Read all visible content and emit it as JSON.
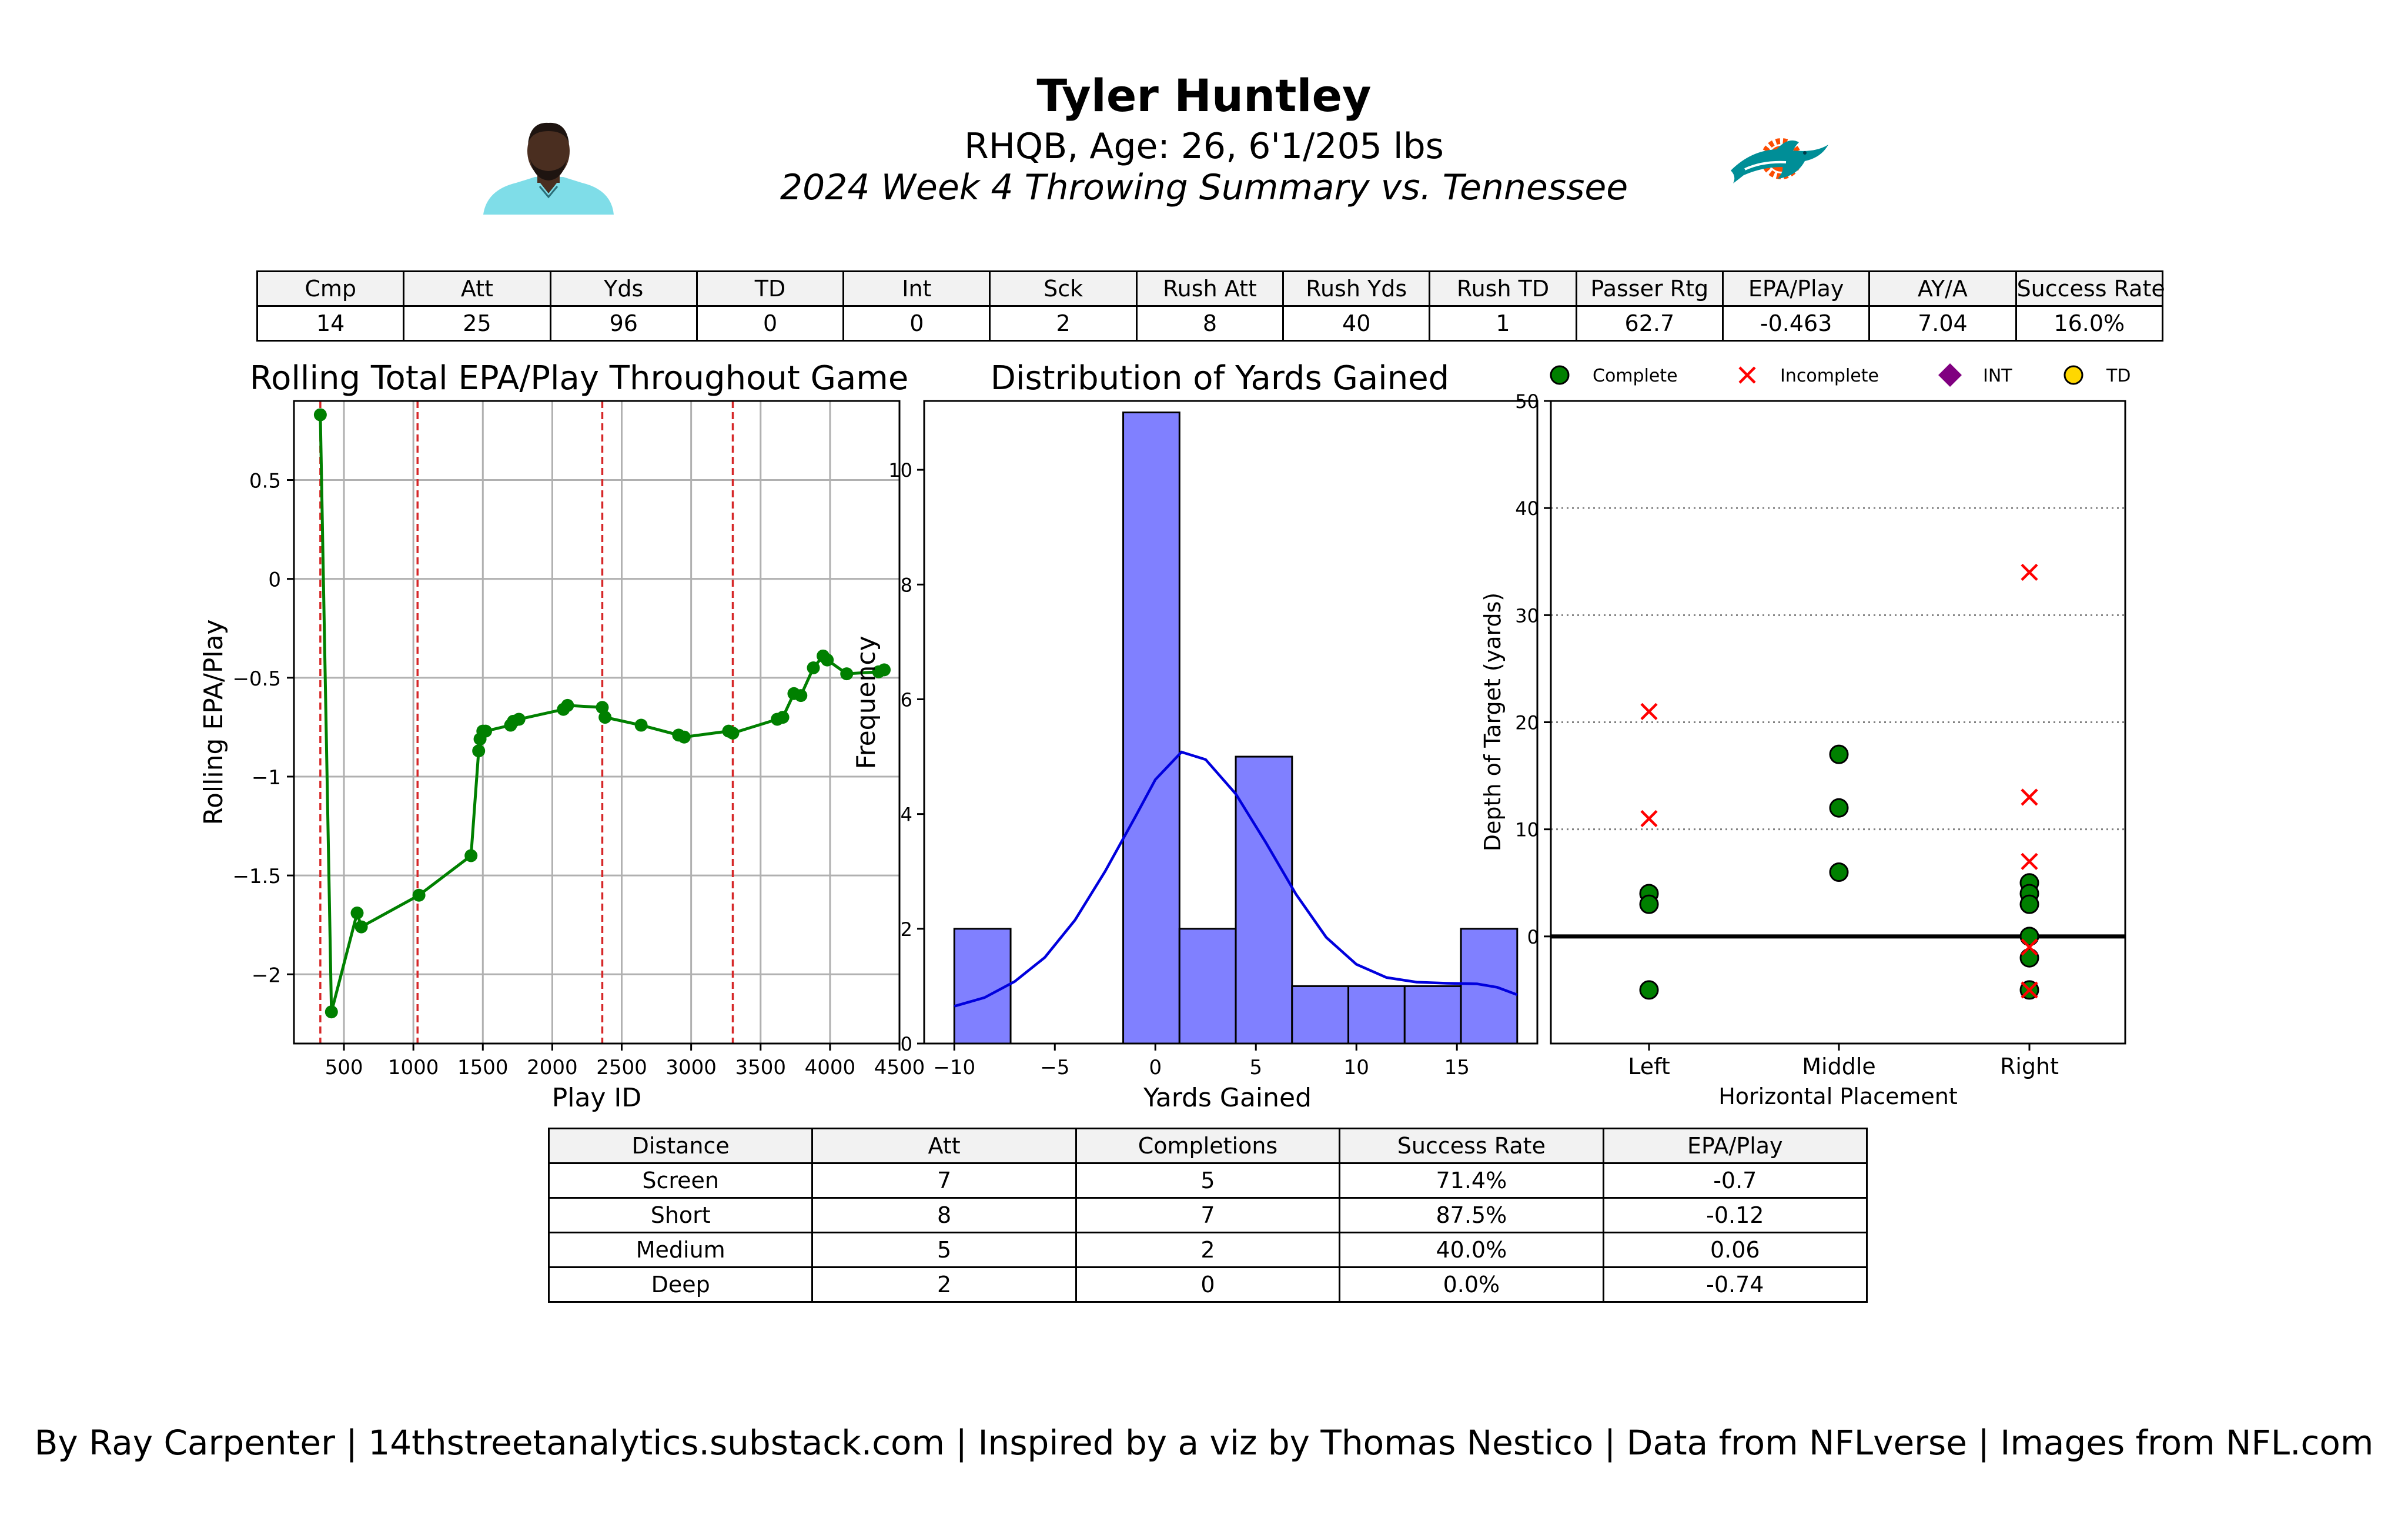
{
  "header": {
    "title": "Tyler Huntley",
    "subtitle": "RHQB, Age: 26, 6'1/205 lbs",
    "game": "2024 Week 4 Throwing Summary vs. Tennessee"
  },
  "images": {
    "headshot": "player-headshot",
    "logo": "miami-dolphins-logo",
    "colors": {
      "aqua": "#008E97",
      "orange": "#FC4C02",
      "skin": "#5a3a28"
    }
  },
  "stats_table": {
    "headers": [
      "Cmp",
      "Att",
      "Yds",
      "TD",
      "Int",
      "Sck",
      "Rush Att",
      "Rush Yds",
      "Rush TD",
      "Passer Rtg",
      "EPA/Play",
      "AY/A",
      "Success Rate"
    ],
    "values": [
      "14",
      "25",
      "96",
      "0",
      "0",
      "2",
      "8",
      "40",
      "1",
      "62.7",
      "-0.463",
      "7.04",
      "16.0%"
    ]
  },
  "chart_data": [
    {
      "type": "line",
      "title": "Rolling Total EPA/Play Throughout Game",
      "xlabel": "Play ID",
      "ylabel": "Rolling EPA/Play",
      "xlim": [
        140,
        4500
      ],
      "ylim": [
        -2.35,
        0.9
      ],
      "xticks": [
        500,
        1000,
        1500,
        2000,
        2500,
        3000,
        3500,
        4000,
        4500
      ],
      "yticks": [
        -2.0,
        -1.5,
        -1.0,
        -0.5,
        0.0,
        0.5
      ],
      "grid": true,
      "line_color": "#008000",
      "quarter_lines": [
        330,
        1030,
        2360,
        3300
      ],
      "quarter_line_color": "#d62728",
      "x": [
        330,
        410,
        595,
        625,
        1040,
        1415,
        1470,
        1480,
        1500,
        1520,
        1700,
        1720,
        1760,
        2080,
        2110,
        2360,
        2380,
        2640,
        2910,
        2950,
        3270,
        3300,
        3620,
        3660,
        3740,
        3790,
        3880,
        3950,
        3980,
        4120,
        4350,
        4390
      ],
      "y": [
        0.83,
        -2.19,
        -1.69,
        -1.76,
        -1.6,
        -1.4,
        -0.87,
        -0.81,
        -0.77,
        -0.77,
        -0.74,
        -0.72,
        -0.71,
        -0.66,
        -0.64,
        -0.65,
        -0.7,
        -0.74,
        -0.79,
        -0.8,
        -0.77,
        -0.78,
        -0.71,
        -0.7,
        -0.58,
        -0.59,
        -0.45,
        -0.39,
        -0.41,
        -0.48,
        -0.47,
        -0.46
      ]
    },
    {
      "type": "bar",
      "title": "Distribution of Yards Gained",
      "xlabel": "Yards Gained",
      "ylabel": "Frequency",
      "xlim": [
        -11.5,
        19
      ],
      "ylim": [
        0,
        11.2
      ],
      "xticks": [
        -10,
        -5,
        0,
        5,
        10,
        15
      ],
      "yticks": [
        0,
        2,
        4,
        6,
        8,
        10
      ],
      "bar_color": "#8080ff",
      "kde_color": "#0000dd",
      "bin_edges": [
        -10,
        -7.2,
        -4.4,
        -1.6,
        1.2,
        4.0,
        6.8,
        9.6,
        12.4,
        15.2,
        18
      ],
      "values": [
        2,
        0,
        0,
        11,
        2,
        5,
        1,
        1,
        1,
        2
      ],
      "kde_x": [
        -10,
        -8.5,
        -7,
        -5.5,
        -4,
        -2.5,
        -1,
        0,
        1.3,
        2.5,
        4,
        5.5,
        7,
        8.5,
        10,
        11.5,
        13,
        14.5,
        16,
        17,
        18
      ],
      "kde_y": [
        0.65,
        0.8,
        1.08,
        1.5,
        2.15,
        3.0,
        3.95,
        4.6,
        5.08,
        4.95,
        4.35,
        3.5,
        2.6,
        1.85,
        1.38,
        1.15,
        1.07,
        1.05,
        1.04,
        0.98,
        0.85
      ]
    },
    {
      "type": "scatter",
      "xlabel": "Horizontal Placement",
      "ylabel": "Depth of Target (yards)",
      "categories": [
        "Left",
        "Middle",
        "Right"
      ],
      "ylim": [
        -10,
        50
      ],
      "yticks": [
        0,
        10,
        20,
        30,
        40,
        50
      ],
      "grid": "dotted-y",
      "legend": {
        "position": "top",
        "items": [
          {
            "label": "Complete",
            "marker": "circle",
            "color": "#008000"
          },
          {
            "label": "Incomplete",
            "marker": "x",
            "color": "#ff0000"
          },
          {
            "label": "INT",
            "marker": "diamond",
            "color": "#800080"
          },
          {
            "label": "TD",
            "marker": "circle",
            "color": "#ffd700"
          }
        ]
      },
      "complete": [
        {
          "x": "Left",
          "y": 4
        },
        {
          "x": "Left",
          "y": 3
        },
        {
          "x": "Left",
          "y": -5
        },
        {
          "x": "Middle",
          "y": 17
        },
        {
          "x": "Middle",
          "y": 12
        },
        {
          "x": "Middle",
          "y": 6
        },
        {
          "x": "Right",
          "y": 5
        },
        {
          "x": "Right",
          "y": 4
        },
        {
          "x": "Right",
          "y": 3
        },
        {
          "x": "Right",
          "y": 0
        },
        {
          "x": "Right",
          "y": -2
        },
        {
          "x": "Right",
          "y": -5
        }
      ],
      "incomplete": [
        {
          "x": "Left",
          "y": 21
        },
        {
          "x": "Left",
          "y": 11
        },
        {
          "x": "Right",
          "y": 34
        },
        {
          "x": "Right",
          "y": 13
        },
        {
          "x": "Right",
          "y": 7
        },
        {
          "x": "Right",
          "y": -1
        },
        {
          "x": "Right",
          "y": -5
        }
      ],
      "int": [],
      "td": []
    }
  ],
  "distance_table": {
    "headers": [
      "Distance",
      "Att",
      "Completions",
      "Success Rate",
      "EPA/Play"
    ],
    "rows": [
      [
        "Screen",
        "7",
        "5",
        "71.4%",
        "-0.7"
      ],
      [
        "Short",
        "8",
        "7",
        "87.5%",
        "-0.12"
      ],
      [
        "Medium",
        "5",
        "2",
        "40.0%",
        "0.06"
      ],
      [
        "Deep",
        "2",
        "0",
        "0.0%",
        "-0.74"
      ]
    ]
  },
  "footer": "By Ray Carpenter | 14thstreetanalytics.substack.com | Inspired by a viz by Thomas Nestico | Data from NFLverse | Images from NFL.com"
}
